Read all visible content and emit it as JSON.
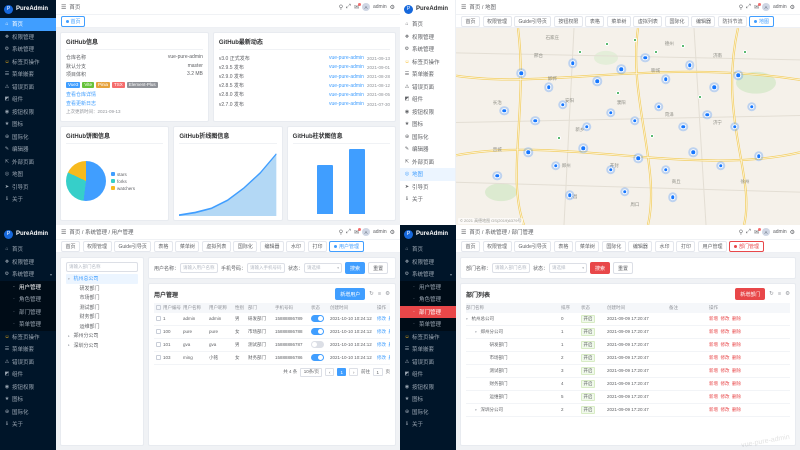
{
  "brand": "PureAdmin",
  "logo_letter": "P",
  "chrome": {
    "hamburger": "☰",
    "search": "⚲",
    "fullscreen": "⤢",
    "bell": "✉",
    "gear": "⚙",
    "username": "admin",
    "avatar_initial": "A"
  },
  "q1": {
    "breadcrumb": "首页",
    "tabs": [
      {
        "label": "首页",
        "cls": "active"
      }
    ],
    "sidebar": [
      {
        "icon": "⌂",
        "label": "首页",
        "cls": "active"
      },
      {
        "icon": "❖",
        "label": "权限管理"
      },
      {
        "icon": "⚙",
        "label": "系统管理"
      },
      {
        "icon": "☺",
        "label": "标签页操作",
        "icls": "yellow"
      },
      {
        "icon": "☰",
        "label": "菜单嵌套"
      },
      {
        "icon": "⚠",
        "label": "错误页面"
      },
      {
        "icon": "◩",
        "label": "组件"
      },
      {
        "icon": "◉",
        "label": "按钮权限"
      },
      {
        "icon": "★",
        "label": "图标"
      },
      {
        "icon": "⊕",
        "label": "国际化"
      },
      {
        "icon": "✎",
        "label": "编辑器"
      },
      {
        "icon": "⇱",
        "label": "外部页面"
      },
      {
        "icon": "◎",
        "label": "地图"
      },
      {
        "icon": "➤",
        "label": "引导页"
      },
      {
        "icon": "ℹ",
        "label": "关于"
      }
    ],
    "info": {
      "title": "GitHub信息",
      "rows": [
        {
          "label": "仓库名称",
          "value": "vue-pure-admin"
        },
        {
          "label": "默认分支",
          "value": "master"
        },
        {
          "label": "项目体积",
          "value": "3.2 MB"
        }
      ],
      "tags": [
        {
          "t": "Vue3",
          "s": "background:#409eff"
        },
        {
          "t": "Vite",
          "s": "background:#67c23a"
        },
        {
          "t": "Pinia",
          "s": "background:#e6a23c"
        },
        {
          "t": "TSX",
          "s": "background:#f56c6c"
        },
        {
          "t": "Element-Plus",
          "s": "background:#909399"
        }
      ],
      "links": [
        "查看仓库详情",
        "查看更新日志"
      ],
      "updated": "上次更新时间：2021-09-13"
    },
    "news": {
      "title": "GitHub最新动态",
      "items": [
        {
          "ver": "v3.0 正式发布",
          "repo": "vue-pure-admin",
          "date": "2021-09-13"
        },
        {
          "ver": "v2.9.5 发布",
          "repo": "vue-pure-admin",
          "date": "2021-09-01"
        },
        {
          "ver": "v2.9.0 发布",
          "repo": "vue-pure-admin",
          "date": "2021-08-28"
        },
        {
          "ver": "v2.8.5 发布",
          "repo": "vue-pure-admin",
          "date": "2021-08-12"
        },
        {
          "ver": "v2.8.0 发布",
          "repo": "vue-pure-admin",
          "date": "2021-08-05"
        },
        {
          "ver": "v2.7.0 发布",
          "repo": "vue-pure-admin",
          "date": "2021-07-30"
        }
      ]
    },
    "charts": {
      "pie": {
        "type": "pie",
        "title": "GitHub饼图信息",
        "legend": [
          {
            "label": "stars",
            "value": 52,
            "color": "#409eff",
            "s": "background:#409eff"
          },
          {
            "label": "forks",
            "value": 30,
            "color": "#36cfc9",
            "s": "background:#36cfc9"
          },
          {
            "label": "watchers",
            "value": 18,
            "color": "#f7ba1e",
            "s": "background:#f7ba1e"
          }
        ]
      },
      "line": {
        "type": "area",
        "title": "GitHub折线图信息",
        "x": [
          "3月",
          "4月",
          "5月",
          "6月",
          "7月",
          "8月",
          "9月"
        ],
        "values": [
          10,
          30,
          60,
          120,
          210,
          320,
          460
        ],
        "color": "#409eff"
      },
      "bar": {
        "type": "bar",
        "title": "GitHub柱状图信息",
        "categories": [
          "2020",
          "2021"
        ],
        "values": [
          520,
          690
        ],
        "color": "#409eff"
      }
    }
  },
  "q2": {
    "breadcrumb": "首页 / 地图",
    "tabs": [
      {
        "label": "首页"
      },
      {
        "label": "权限管理"
      },
      {
        "label": "Guide引导页"
      },
      {
        "label": "按钮权限"
      },
      {
        "label": "表格"
      },
      {
        "label": "菜单树"
      },
      {
        "label": "虚拟列表"
      },
      {
        "label": "国际化"
      },
      {
        "label": "编辑器"
      },
      {
        "label": "防抖节流"
      },
      {
        "label": "地图",
        "cls": "active"
      }
    ],
    "sidebar": [
      {
        "icon": "⌂",
        "label": "首页"
      },
      {
        "icon": "❖",
        "label": "权限管理"
      },
      {
        "icon": "⚙",
        "label": "系统管理"
      },
      {
        "icon": "☺",
        "label": "标签页操作",
        "icls": "yellow"
      },
      {
        "icon": "☰",
        "label": "菜单嵌套"
      },
      {
        "icon": "⚠",
        "label": "错误页面"
      },
      {
        "icon": "◩",
        "label": "组件"
      },
      {
        "icon": "◉",
        "label": "按钮权限"
      },
      {
        "icon": "★",
        "label": "图标"
      },
      {
        "icon": "⊕",
        "label": "国际化"
      },
      {
        "icon": "✎",
        "label": "编辑器"
      },
      {
        "icon": "⇱",
        "label": "外部页面"
      },
      {
        "icon": "◎",
        "label": "地图",
        "cls": "active"
      },
      {
        "icon": "➤",
        "label": "引导页"
      },
      {
        "icon": "ℹ",
        "label": "关于"
      }
    ],
    "map": {
      "attribution": "© 2021 高德地图 GS(2019)6379号",
      "cities": [
        {
          "t": "石家庄",
          "pos": "left:28%;top:5%"
        },
        {
          "t": "邢台",
          "pos": "left:24%;top:14%"
        },
        {
          "t": "德州",
          "pos": "left:62%;top:8%"
        },
        {
          "t": "邯郸",
          "pos": "left:28%;top:26%"
        },
        {
          "t": "聊城",
          "pos": "left:58%;top:22%"
        },
        {
          "t": "济南",
          "pos": "left:76%;top:14%"
        },
        {
          "t": "安阳",
          "pos": "left:33%;top:37%"
        },
        {
          "t": "濮阳",
          "pos": "left:48%;top:38%"
        },
        {
          "t": "菏泽",
          "pos": "left:62%;top:44%"
        },
        {
          "t": "长治",
          "pos": "left:12%;top:38%"
        },
        {
          "t": "新乡",
          "pos": "left:36%;top:52%"
        },
        {
          "t": "济宁",
          "pos": "left:76%;top:48%"
        },
        {
          "t": "晋城",
          "pos": "left:12%;top:62%"
        },
        {
          "t": "郑州",
          "pos": "left:32%;top:70%"
        },
        {
          "t": "开封",
          "pos": "left:46%;top:70%"
        },
        {
          "t": "商丘",
          "pos": "left:64%;top:78%"
        },
        {
          "t": "徐州",
          "pos": "left:84%;top:78%"
        },
        {
          "t": "许昌",
          "pos": "left:34%;top:86%"
        },
        {
          "t": "周口",
          "pos": "left:52%;top:90%"
        }
      ],
      "blue": [
        {
          "pos": "left:19%;top:23%"
        },
        {
          "pos": "left:27%;top:30%"
        },
        {
          "pos": "left:34%;top:18%"
        },
        {
          "pos": "left:41%;top:27%"
        },
        {
          "pos": "left:48%;top:21%"
        },
        {
          "pos": "left:55%;top:15%"
        },
        {
          "pos": "left:61%;top:26%"
        },
        {
          "pos": "left:68%;top:19%"
        },
        {
          "pos": "left:75%;top:30%"
        },
        {
          "pos": "left:82%;top:24%"
        },
        {
          "pos": "left:14%;top:42%"
        },
        {
          "pos": "left:23%;top:47%"
        },
        {
          "pos": "left:31%;top:39%"
        },
        {
          "pos": "left:38%;top:50%"
        },
        {
          "pos": "left:45%;top:43%"
        },
        {
          "pos": "left:52%;top:47%"
        },
        {
          "pos": "left:59%;top:40%"
        },
        {
          "pos": "left:66%;top:50%"
        },
        {
          "pos": "left:73%;top:44%"
        },
        {
          "pos": "left:81%;top:50%"
        },
        {
          "pos": "left:21%;top:63%"
        },
        {
          "pos": "left:29%;top:70%"
        },
        {
          "pos": "left:37%;top:61%"
        },
        {
          "pos": "left:45%;top:72%"
        },
        {
          "pos": "left:53%;top:66%"
        },
        {
          "pos": "left:61%;top:72%"
        },
        {
          "pos": "left:69%;top:63%"
        },
        {
          "pos": "left:77%;top:70%"
        },
        {
          "pos": "left:33%;top:85%"
        },
        {
          "pos": "left:49%;top:83%"
        },
        {
          "pos": "left:63%;top:86%"
        },
        {
          "pos": "left:12%;top:75%"
        },
        {
          "pos": "left:86%;top:40%"
        },
        {
          "pos": "left:88%;top:65%"
        }
      ],
      "green": [
        {
          "pos": "left:44%;top:8%"
        },
        {
          "pos": "left:52%;top:6%"
        },
        {
          "pos": "left:58%;top:12%"
        },
        {
          "pos": "left:36%;top:12%"
        },
        {
          "pos": "left:66%;top:9%"
        },
        {
          "pos": "left:47%;top:33%"
        },
        {
          "pos": "left:57%;top:55%"
        },
        {
          "pos": "left:30%;top:56%"
        },
        {
          "pos": "left:71%;top:35%"
        },
        {
          "pos": "left:84%;top:12%"
        }
      ]
    }
  },
  "q3": {
    "breadcrumb": "首页 / 系统管理 / 用户管理",
    "tabs": [
      {
        "label": "首页"
      },
      {
        "label": "权限管理"
      },
      {
        "label": "Guide引导页"
      },
      {
        "label": "表格"
      },
      {
        "label": "菜单树"
      },
      {
        "label": "虚拟列表"
      },
      {
        "label": "国际化"
      },
      {
        "label": "编辑器"
      },
      {
        "label": "水印"
      },
      {
        "label": "打印"
      },
      {
        "label": "用户管理",
        "cls": "active"
      }
    ],
    "sidebar": [
      {
        "icon": "⌂",
        "label": "首页"
      },
      {
        "icon": "❖",
        "label": "权限管理"
      },
      {
        "icon": "⚙",
        "label": "系统管理",
        "arrow": "▾"
      },
      {
        "icon": "·",
        "label": "用户管理",
        "cls": "child active"
      },
      {
        "icon": "·",
        "label": "角色管理",
        "cls": "child"
      },
      {
        "icon": "·",
        "label": "部门管理",
        "cls": "child"
      },
      {
        "icon": "·",
        "label": "菜单管理",
        "cls": "child"
      },
      {
        "icon": "☺",
        "label": "标签页操作",
        "icls": "yellow"
      },
      {
        "icon": "☰",
        "label": "菜单嵌套"
      },
      {
        "icon": "⚠",
        "label": "错误页面"
      },
      {
        "icon": "◩",
        "label": "组件"
      },
      {
        "icon": "◉",
        "label": "按钮权限"
      },
      {
        "icon": "★",
        "label": "图标"
      },
      {
        "icon": "⊕",
        "label": "国际化"
      },
      {
        "icon": "ℹ",
        "label": "关于"
      }
    ],
    "tree": {
      "placeholder": "请输入部门名称",
      "nodes": [
        {
          "label": "杭州总公司",
          "cls": "lv0 sel",
          "arrow": "▾"
        },
        {
          "label": "研发部门",
          "cls": "lv1"
        },
        {
          "label": "市场部门",
          "cls": "lv1"
        },
        {
          "label": "测试部门",
          "cls": "lv1"
        },
        {
          "label": "财务部门",
          "cls": "lv1"
        },
        {
          "label": "运维部门",
          "cls": "lv1"
        },
        {
          "label": "郑州分公司",
          "cls": "lv0",
          "arrow": "▸"
        },
        {
          "label": "深圳分公司",
          "cls": "lv0",
          "arrow": "▸"
        }
      ]
    },
    "search": {
      "fields": [
        {
          "label": "用户名称：",
          "ph": "请输入用户名称"
        },
        {
          "label": "手机号码：",
          "ph": "请输入手机号码"
        },
        {
          "label": "状态：",
          "ph": "请选择",
          "cls": "sel"
        }
      ],
      "search": "搜索",
      "reset": "重置"
    },
    "table": {
      "title": "用户管理",
      "add": "新增用户",
      "toolbar": [
        "↻",
        "≡",
        "⚙"
      ],
      "cols": [
        "用户编号",
        "用户名称",
        "用户昵称",
        "性别",
        "部门",
        "手机号码",
        "状态",
        "创建时间",
        "操作"
      ],
      "ops": [
        "修改",
        "删除",
        "更多"
      ],
      "rows": [
        {
          "id": "1",
          "username": "admin",
          "nickname": "admin",
          "sex": "男",
          "dept": "研发部门",
          "phone": "15888886789",
          "sw": "on",
          "created": "2021-10-10 10:24:12"
        },
        {
          "id": "100",
          "username": "pure",
          "nickname": "pure",
          "sex": "女",
          "dept": "市场部门",
          "phone": "15888886788",
          "sw": "on",
          "created": "2021-10-10 10:24:12"
        },
        {
          "id": "101",
          "username": "gva",
          "nickname": "gva",
          "sex": "男",
          "dept": "测试部门",
          "phone": "15888886787",
          "sw": "off",
          "created": "2021-10-10 10:24:12"
        },
        {
          "id": "103",
          "username": "ming",
          "nickname": "小铭",
          "sex": "女",
          "dept": "财务部门",
          "phone": "15888886786",
          "sw": "on",
          "created": "2021-10-10 10:24:12"
        }
      ],
      "pager": {
        "total": "共 4 条",
        "size": "10条/页",
        "prev": "‹",
        "page": "1",
        "next": "›",
        "goto": "前往",
        "unit": "页"
      }
    }
  },
  "q4": {
    "breadcrumb": "首页 / 系统管理 / 部门管理",
    "watermark": "vue-pure-admin",
    "tabs": [
      {
        "label": "首页"
      },
      {
        "label": "权限管理"
      },
      {
        "label": "Guide引导页"
      },
      {
        "label": "表格"
      },
      {
        "label": "菜单树"
      },
      {
        "label": "国际化"
      },
      {
        "label": "编辑器"
      },
      {
        "label": "水印"
      },
      {
        "label": "打印"
      },
      {
        "label": "用户管理"
      },
      {
        "label": "部门管理",
        "cls": "active"
      }
    ],
    "sidebar": [
      {
        "icon": "⌂",
        "label": "首页"
      },
      {
        "icon": "❖",
        "label": "权限管理"
      },
      {
        "icon": "⚙",
        "label": "系统管理",
        "arrow": "▾"
      },
      {
        "icon": "·",
        "label": "用户管理",
        "cls": "child"
      },
      {
        "icon": "·",
        "label": "角色管理",
        "cls": "child"
      },
      {
        "icon": "·",
        "label": "部门管理",
        "cls": "child active"
      },
      {
        "icon": "·",
        "label": "菜单管理",
        "cls": "child"
      },
      {
        "icon": "☺",
        "label": "标签页操作",
        "icls": "yellow"
      },
      {
        "icon": "☰",
        "label": "菜单嵌套"
      },
      {
        "icon": "⚠",
        "label": "错误页面"
      },
      {
        "icon": "◩",
        "label": "组件"
      },
      {
        "icon": "◉",
        "label": "按钮权限"
      },
      {
        "icon": "★",
        "label": "图标"
      },
      {
        "icon": "⊕",
        "label": "国际化"
      },
      {
        "icon": "ℹ",
        "label": "关于"
      }
    ],
    "search": {
      "fields": [
        {
          "label": "部门名称：",
          "ph": "请输入部门名称"
        },
        {
          "label": "状态：",
          "ph": "请选择",
          "cls": "sel"
        }
      ],
      "search": "搜索",
      "reset": "重置"
    },
    "table": {
      "title": "部门列表",
      "add": "新增部门",
      "toolbar": [
        "↻",
        "≡",
        "⚙"
      ],
      "cols": [
        "部门名称",
        "排序",
        "状态",
        "创建时间",
        "备注",
        "操作"
      ],
      "ops": [
        "新增",
        "修改",
        "删除"
      ],
      "rows": [
        {
          "name": "杭州总公司",
          "cls": "lv0",
          "arrow": "▾",
          "sort": "0",
          "status": "开启",
          "created": "2021-09-09 17:20:47",
          "remark": ""
        },
        {
          "name": "郑州分公司",
          "cls": "lv1",
          "arrow": "▾",
          "sort": "1",
          "status": "开启",
          "created": "2021-09-09 17:20:47",
          "remark": ""
        },
        {
          "name": "研发部门",
          "cls": "lv2",
          "arrow": "",
          "sort": "1",
          "status": "开启",
          "created": "2021-09-09 17:20:47",
          "remark": ""
        },
        {
          "name": "市场部门",
          "cls": "lv2",
          "arrow": "",
          "sort": "2",
          "status": "开启",
          "created": "2021-09-09 17:20:47",
          "remark": ""
        },
        {
          "name": "测试部门",
          "cls": "lv2",
          "arrow": "",
          "sort": "3",
          "status": "开启",
          "created": "2021-09-09 17:20:47",
          "remark": ""
        },
        {
          "name": "财务部门",
          "cls": "lv2",
          "arrow": "",
          "sort": "4",
          "status": "开启",
          "created": "2021-09-09 17:20:47",
          "remark": ""
        },
        {
          "name": "运维部门",
          "cls": "lv2",
          "arrow": "",
          "sort": "5",
          "status": "开启",
          "created": "2021-09-09 17:20:47",
          "remark": ""
        },
        {
          "name": "深圳分公司",
          "cls": "lv1",
          "arrow": "▾",
          "sort": "2",
          "status": "开启",
          "created": "2021-09-09 17:20:47",
          "remark": ""
        }
      ]
    }
  }
}
